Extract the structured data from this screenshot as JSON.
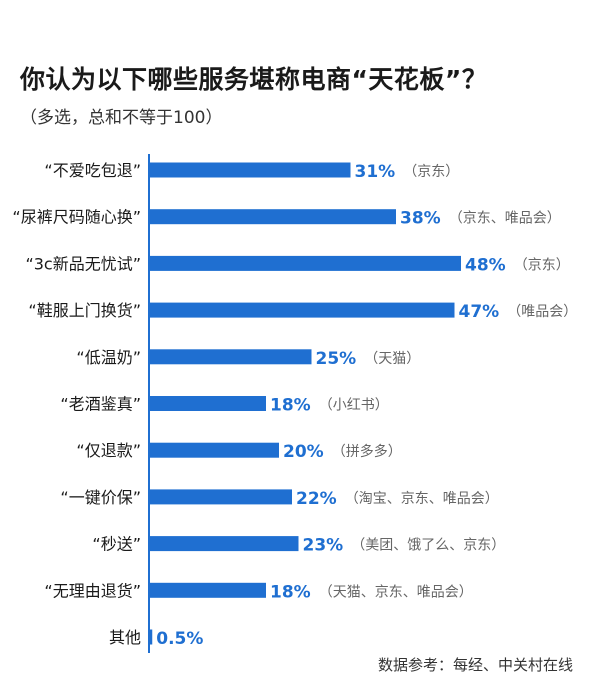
{
  "title": "你认为以下哪些服务堪称电商“天花板”？",
  "subtitle": "（多选，总和不等于100）",
  "source": "数据参考：每经、中关村在线",
  "colors": {
    "bar": "#1f6fd1",
    "value": "#1f6fd1",
    "note": "#666666",
    "axis": "#1f6fd1"
  },
  "chart_data": {
    "type": "bar",
    "orientation": "horizontal",
    "categories": [
      "“不爱吃包退”",
      "“尿裤尺码随心换”",
      "“3c新品无忧试”",
      "“鞋服上门换货”",
      "“低温奶”",
      "“老酒鉴真”",
      "“仅退款”",
      "“一键价保”",
      "“秒送”",
      "“无理由退货”",
      "其他"
    ],
    "values": [
      31,
      38,
      48,
      47,
      25,
      18,
      20,
      22,
      23,
      18,
      0.5
    ],
    "value_labels": [
      "31%",
      "38%",
      "48%",
      "47%",
      "25%",
      "18%",
      "20%",
      "22%",
      "23%",
      "18%",
      "0.5%"
    ],
    "notes": [
      "（京东）",
      "（京东、唯品会）",
      "（京东）",
      "（唯品会）",
      "（天猫）",
      "（小红书）",
      "（拼多多）",
      "（淘宝、京东、唯品会）",
      "（美团、饿了么、京东）",
      "（天猫、京东、唯品会）",
      ""
    ],
    "xlim": [
      0,
      50
    ]
  }
}
